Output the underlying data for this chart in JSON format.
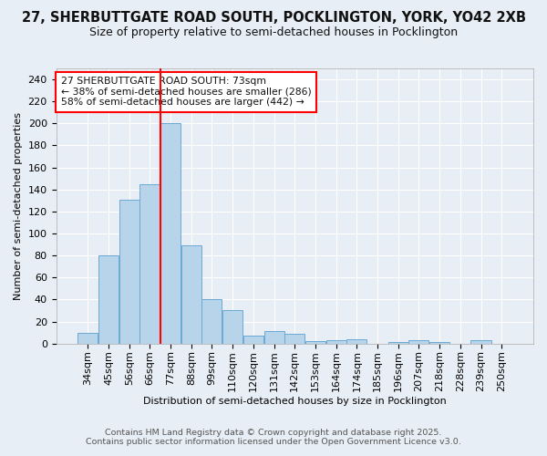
{
  "title_line1": "27, SHERBUTTGATE ROAD SOUTH, POCKLINGTON, YORK, YO42 2XB",
  "title_line2": "Size of property relative to semi-detached houses in Pocklington",
  "categories": [
    "34sqm",
    "45sqm",
    "56sqm",
    "66sqm",
    "77sqm",
    "88sqm",
    "99sqm",
    "110sqm",
    "120sqm",
    "131sqm",
    "142sqm",
    "153sqm",
    "164sqm",
    "174sqm",
    "185sqm",
    "196sqm",
    "207sqm",
    "218sqm",
    "228sqm",
    "239sqm",
    "250sqm"
  ],
  "values": [
    10,
    80,
    131,
    145,
    200,
    89,
    40,
    30,
    7,
    11,
    9,
    2,
    3,
    4,
    0,
    1,
    3,
    1,
    0,
    3,
    0
  ],
  "bar_color": "#b8d4ea",
  "bar_edge_color": "#6aaad4",
  "red_line_index": 4,
  "annotation_title": "27 SHERBUTTGATE ROAD SOUTH: 73sqm",
  "annotation_line2": "← 38% of semi-detached houses are smaller (286)",
  "annotation_line3": "58% of semi-detached houses are larger (442) →",
  "xlabel": "Distribution of semi-detached houses by size in Pocklington",
  "ylabel": "Number of semi-detached properties",
  "ylim_max": 250,
  "yticks": [
    0,
    20,
    40,
    60,
    80,
    100,
    120,
    140,
    160,
    180,
    200,
    220,
    240
  ],
  "footer_line1": "Contains HM Land Registry data © Crown copyright and database right 2025.",
  "footer_line2": "Contains public sector information licensed under the Open Government Licence v3.0.",
  "bg_color": "#e8eef5",
  "grid_color": "#ffffff",
  "title1_fontsize": 10.5,
  "title2_fontsize": 9,
  "axis_fontsize": 8,
  "tick_fontsize": 8,
  "annotation_fontsize": 7.8,
  "footer_fontsize": 6.8
}
